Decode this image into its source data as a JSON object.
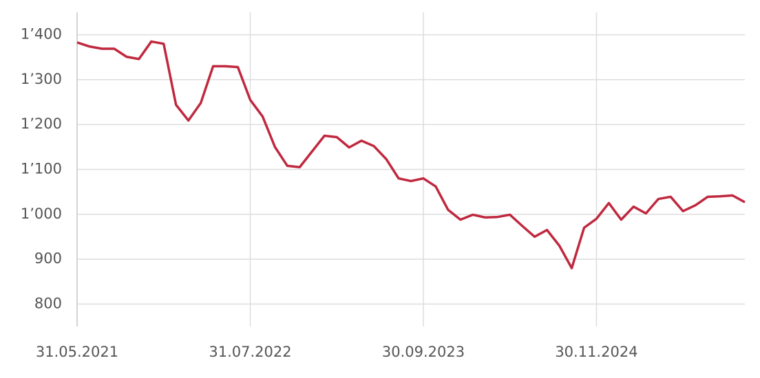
{
  "chart_data": {
    "type": "line",
    "categories": [
      "31.05.2021",
      null,
      null,
      null,
      null,
      null,
      null,
      null,
      null,
      null,
      null,
      null,
      null,
      null,
      "31.07.2022",
      null,
      null,
      null,
      null,
      null,
      null,
      null,
      null,
      null,
      null,
      null,
      null,
      null,
      "30.09.2023",
      null,
      null,
      null,
      null,
      null,
      null,
      null,
      null,
      null,
      null,
      null,
      null,
      null,
      "30.11.2024",
      null,
      null,
      null,
      null,
      null,
      null,
      null,
      null,
      null,
      null,
      null,
      null
    ],
    "series": [
      {
        "color": "#c0283e",
        "values": [
          1383,
          1374,
          1369,
          1369,
          1351,
          1346,
          1385,
          1380,
          1244,
          1209,
          1248,
          1330,
          1330,
          1328,
          1255,
          1218,
          1150,
          1108,
          1105,
          1140,
          1175,
          1172,
          1149,
          1164,
          1152,
          1123,
          1080,
          1074,
          1080,
          1062,
          1010,
          988,
          999,
          993,
          994,
          999,
          974,
          950,
          965,
          930,
          880,
          970,
          990,
          1025,
          988,
          1017,
          1002,
          1034,
          1039,
          1007,
          1020,
          1039,
          1040,
          1042,
          1027
        ]
      }
    ],
    "ylim": [
      750,
      1450
    ],
    "yticks": [
      800,
      900,
      {
        "value": 1000,
        "label": "1’000"
      },
      {
        "value": 1100,
        "label": "1’100"
      },
      {
        "value": 1200,
        "label": "1’200"
      },
      {
        "value": 1300,
        "label": "1’300"
      },
      {
        "value": 1400,
        "label": "1’400"
      }
    ],
    "grid": true
  }
}
